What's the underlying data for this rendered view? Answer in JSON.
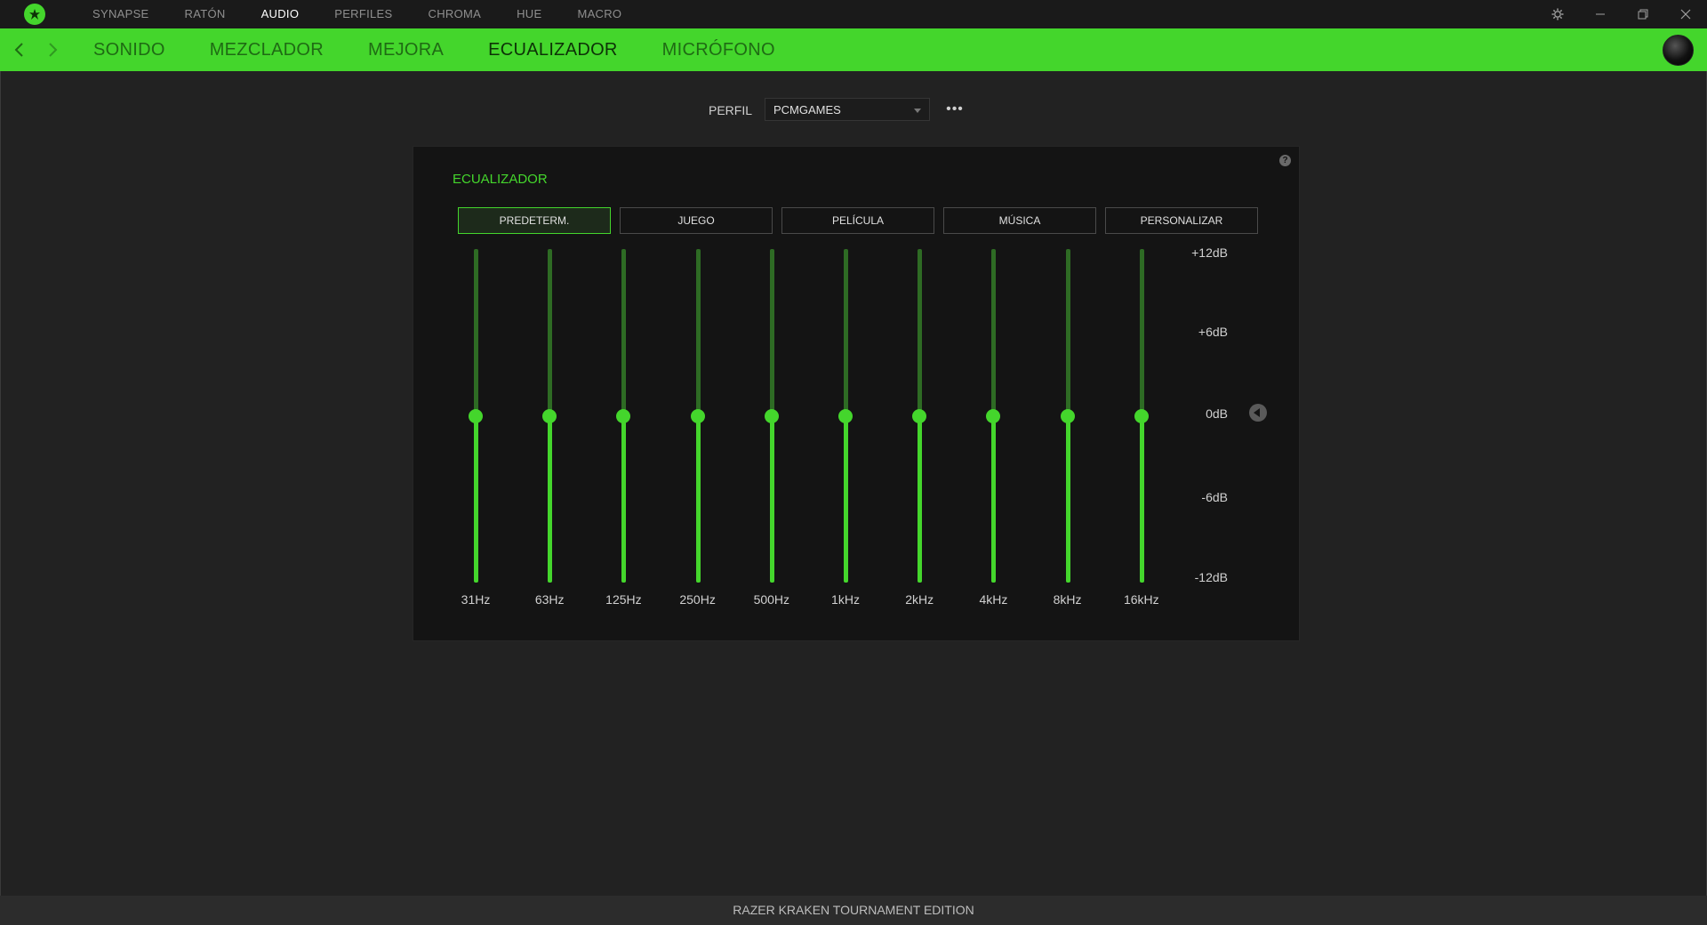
{
  "topnav": {
    "items": [
      {
        "label": "SYNAPSE",
        "active": false
      },
      {
        "label": "RATÓN",
        "active": false
      },
      {
        "label": "AUDIO",
        "active": true
      },
      {
        "label": "PERFILES",
        "active": false
      },
      {
        "label": "CHROMA",
        "active": false
      },
      {
        "label": "HUE",
        "active": false
      },
      {
        "label": "MACRO",
        "active": false
      }
    ]
  },
  "subnav": {
    "items": [
      {
        "label": "SONIDO",
        "active": false
      },
      {
        "label": "MEZCLADOR",
        "active": false
      },
      {
        "label": "MEJORA",
        "active": false
      },
      {
        "label": "ECUALIZADOR",
        "active": true
      },
      {
        "label": "MICRÓFONO",
        "active": false
      }
    ]
  },
  "profile": {
    "label": "PERFIL",
    "value": "PCMGAMES",
    "more": "•••"
  },
  "equalizer": {
    "title": "ECUALIZADOR",
    "help": "?",
    "presets": [
      {
        "label": "PREDETERM.",
        "active": true
      },
      {
        "label": "JUEGO",
        "active": false
      },
      {
        "label": "PELÍCULA",
        "active": false
      },
      {
        "label": "MÚSICA",
        "active": false
      },
      {
        "label": "PERSONALIZAR",
        "active": false
      }
    ],
    "bands": [
      {
        "freq": "31Hz",
        "gain_db": 0
      },
      {
        "freq": "63Hz",
        "gain_db": 0
      },
      {
        "freq": "125Hz",
        "gain_db": 0
      },
      {
        "freq": "250Hz",
        "gain_db": 0
      },
      {
        "freq": "500Hz",
        "gain_db": 0
      },
      {
        "freq": "1kHz",
        "gain_db": 0
      },
      {
        "freq": "2kHz",
        "gain_db": 0
      },
      {
        "freq": "4kHz",
        "gain_db": 0
      },
      {
        "freq": "8kHz",
        "gain_db": 0
      },
      {
        "freq": "16kHz",
        "gain_db": 0
      }
    ],
    "db_scale": [
      "+12dB",
      "+6dB",
      "0dB",
      "-6dB",
      "-12dB"
    ]
  },
  "footer": {
    "device": "RAZER KRAKEN TOURNAMENT EDITION"
  },
  "colors": {
    "accent": "#44d62c",
    "background": "#222222",
    "panel": "#141414"
  }
}
